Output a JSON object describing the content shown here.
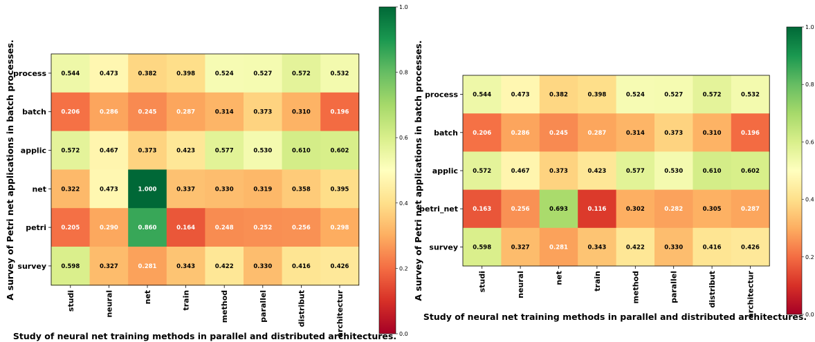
{
  "chart_data": [
    {
      "type": "heatmap",
      "xlabel": "Study of neural net training methods in parallel and distributed architectures.",
      "ylabel": "A survey of Petri net applications in batch processes.",
      "x_categories": [
        "studi",
        "neural",
        "net",
        "train",
        "method",
        "parallel",
        "distribut",
        "architectur"
      ],
      "y_categories": [
        "process",
        "batch",
        "applic",
        "net",
        "petri",
        "survey"
      ],
      "values": [
        [
          0.544,
          0.473,
          0.382,
          0.398,
          0.524,
          0.527,
          0.572,
          0.532
        ],
        [
          0.206,
          0.286,
          0.245,
          0.287,
          0.314,
          0.373,
          0.31,
          0.196
        ],
        [
          0.572,
          0.467,
          0.373,
          0.423,
          0.577,
          0.53,
          0.61,
          0.602
        ],
        [
          0.322,
          0.473,
          1.0,
          0.337,
          0.33,
          0.319,
          0.358,
          0.395
        ],
        [
          0.205,
          0.29,
          0.86,
          0.164,
          0.248,
          0.252,
          0.256,
          0.298
        ],
        [
          0.598,
          0.327,
          0.281,
          0.343,
          0.422,
          0.33,
          0.416,
          0.426
        ]
      ],
      "colorbar": {
        "range": [
          0,
          1
        ],
        "ticks": [
          "0.0",
          "0.2",
          "0.4",
          "0.6",
          "0.8",
          "1.0"
        ],
        "colormap": "RdYlGn"
      }
    },
    {
      "type": "heatmap",
      "xlabel": "Study of neural net training methods in parallel and distributed architectures.",
      "ylabel": "A survey of Petri net applications in batch processes.",
      "x_categories": [
        "studi",
        "neural",
        "net",
        "train",
        "method",
        "parallel",
        "distribut",
        "architectur"
      ],
      "y_categories": [
        "process",
        "batch",
        "applic",
        "petri_net",
        "survey"
      ],
      "values": [
        [
          0.544,
          0.473,
          0.382,
          0.398,
          0.524,
          0.527,
          0.572,
          0.532
        ],
        [
          0.206,
          0.286,
          0.245,
          0.287,
          0.314,
          0.373,
          0.31,
          0.196
        ],
        [
          0.572,
          0.467,
          0.373,
          0.423,
          0.577,
          0.53,
          0.61,
          0.602
        ],
        [
          0.163,
          0.256,
          0.693,
          0.116,
          0.302,
          0.282,
          0.305,
          0.287
        ],
        [
          0.598,
          0.327,
          0.281,
          0.343,
          0.422,
          0.33,
          0.416,
          0.426
        ]
      ],
      "colorbar": {
        "range": [
          0,
          1
        ],
        "ticks": [
          "0.0",
          "0.2",
          "0.4",
          "0.6",
          "0.8",
          "1.0"
        ],
        "colormap": "RdYlGn"
      }
    }
  ]
}
